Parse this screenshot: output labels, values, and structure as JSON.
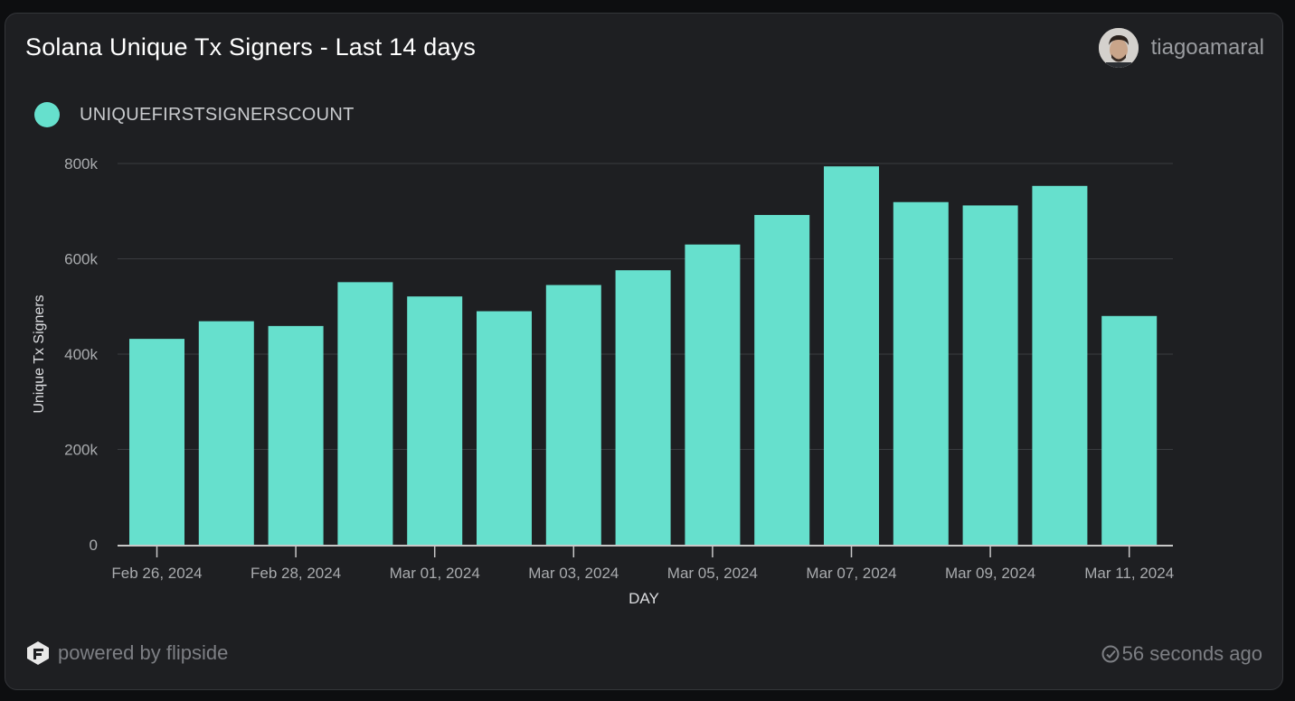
{
  "header": {
    "title": "Solana Unique Tx Signers - Last 14 days",
    "author": "tiagoamaral"
  },
  "footer": {
    "powered_by": "powered by flipside",
    "updated": "56 seconds ago"
  },
  "colors": {
    "bar": "#66e0cd",
    "background": "#1e1f22",
    "grid": "#3a3c40"
  },
  "icons": [
    "avatar",
    "flipside-logo-icon",
    "check-circle-icon"
  ],
  "chart_data": {
    "type": "bar",
    "legend": [
      "UNIQUEFIRSTSIGNERSCOUNT"
    ],
    "legend_position": "top-left",
    "xlabel": "DAY",
    "ylabel": "Unique Tx Signers",
    "ylim": [
      0,
      800000
    ],
    "yticks": [
      "0",
      "200k",
      "400k",
      "600k",
      "800k"
    ],
    "grid": true,
    "x_tick_labels": [
      "Feb 26, 2024",
      "Feb 28, 2024",
      "Mar 01, 2024",
      "Mar 03, 2024",
      "Mar 05, 2024",
      "Mar 07, 2024",
      "Mar 09, 2024",
      "Mar 11, 2024"
    ],
    "categories": [
      "2024-02-26",
      "2024-02-27",
      "2024-02-28",
      "2024-02-29",
      "2024-03-01",
      "2024-03-02",
      "2024-03-03",
      "2024-03-04",
      "2024-03-05",
      "2024-03-06",
      "2024-03-07",
      "2024-03-08",
      "2024-03-09",
      "2024-03-10",
      "2024-03-11"
    ],
    "series": [
      {
        "name": "UNIQUEFIRSTSIGNERSCOUNT",
        "values": [
          432000,
          469000,
          459000,
          551000,
          521000,
          490000,
          545000,
          576000,
          630000,
          692000,
          794000,
          719000,
          712000,
          753000,
          480000
        ]
      }
    ]
  }
}
